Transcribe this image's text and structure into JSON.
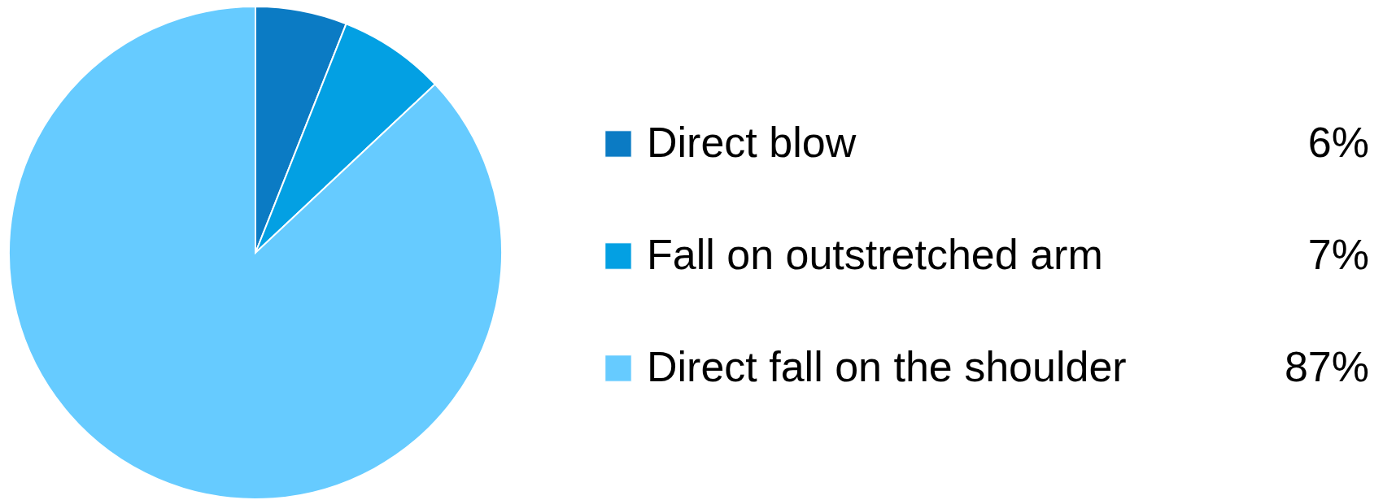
{
  "chart_data": {
    "type": "pie",
    "categories": [
      "Direct blow",
      "Fall on outstretched arm",
      "Direct fall on the shoulder"
    ],
    "values": [
      6,
      7,
      87
    ],
    "colors": [
      "#0b7bc4",
      "#03a0e3",
      "#66cbff"
    ],
    "value_labels": [
      "6%",
      "7%",
      "87%"
    ],
    "legend": "right"
  }
}
